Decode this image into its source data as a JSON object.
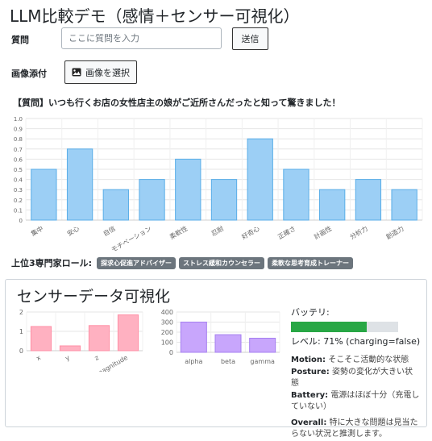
{
  "app": {
    "title": "LLM比較デモ（感情＋センサー可視化）"
  },
  "form": {
    "question_label": "質問",
    "question_placeholder": "ここに質問を入力",
    "question_value": "",
    "send_label": "送信",
    "attach_label": "画像添付",
    "attach_button_label": "画像を選択"
  },
  "question_display": "【質問】いつも行くお店の女性店主の娘がご近所さんだったと知って驚きました！",
  "chart_data": [
    {
      "type": "bar",
      "categories": [
        "集中",
        "安心",
        "自信",
        "モチベーション",
        "柔軟性",
        "忍耐",
        "好奇心",
        "正確さ",
        "計画性",
        "分析力",
        "創造力"
      ],
      "values": [
        0.5,
        0.7,
        0.3,
        0.4,
        0.6,
        0.4,
        0.8,
        0.5,
        0.3,
        0.4,
        0.3
      ],
      "ylim": [
        0,
        1.0
      ],
      "yticks": [
        "0",
        "0.1",
        "0.2",
        "0.3",
        "0.4",
        "0.5",
        "0.6",
        "0.7",
        "0.8",
        "0.9",
        "1.0"
      ],
      "color": "#9ccff5",
      "border": "#5aaee8"
    },
    {
      "type": "bar",
      "categories": [
        "x",
        "y",
        "z",
        "magnitude"
      ],
      "values": [
        1.25,
        0.25,
        1.3,
        1.85
      ],
      "ylim": [
        0,
        2
      ],
      "yticks": [
        "0",
        "1",
        "2"
      ],
      "color": "#ffb1c1",
      "border": "#ff8fa6"
    },
    {
      "type": "bar",
      "categories": [
        "alpha",
        "beta",
        "gamma"
      ],
      "values": [
        300,
        175,
        140
      ],
      "ylim": [
        0,
        400
      ],
      "yticks": [
        "0",
        "100",
        "200",
        "300",
        "400"
      ],
      "color": "#c8a6fc",
      "border": "#a57ff0"
    }
  ],
  "experts": {
    "label": "上位3専門家ロール:",
    "badges": [
      "探求心促進アドバイザー",
      "ストレス緩和カウンセラー",
      "柔軟な思考育成トレーナー"
    ]
  },
  "sensor": {
    "title": "センサーデータ可視化",
    "battery_label": "バッテリ:",
    "battery_fraction": 0.71,
    "battery_color": "#28a745",
    "battery_level_text": "レベル: 71% (charging=false)",
    "motion_label": "Motion:",
    "motion_text": "そこそこ活動的な状態",
    "posture_label": "Posture:",
    "posture_text": "姿勢の変化が大きい状態",
    "battery_status_label": "Battery:",
    "battery_status_text": "電源はほぼ十分（充電していない）",
    "overall_label": "Overall:",
    "overall_text": "特に大きな問題は見当たらない状況と推測します。"
  }
}
